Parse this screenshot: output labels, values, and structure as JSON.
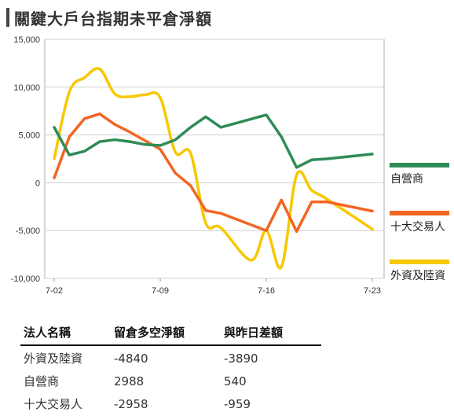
{
  "title": "關鍵大戶台指期未平倉淨額",
  "chart_data": {
    "type": "line",
    "ylim": [
      -10000,
      15000
    ],
    "yticks": [
      15000,
      10000,
      5000,
      0,
      -5000,
      -10000
    ],
    "ytick_labels": [
      "15,000",
      "10,000",
      "5,000",
      "0",
      "-5,000",
      "-10,000"
    ],
    "xtick_labels": [
      "7-02",
      "7-09",
      "7-16",
      "7-23"
    ],
    "xtick_positions": [
      0,
      7,
      14,
      21
    ],
    "x_range": [
      0,
      21
    ],
    "grid": true,
    "legend_position": "right",
    "series": [
      {
        "name": "自營商",
        "color": "#2e8b57",
        "smooth": false,
        "points": [
          [
            0,
            5800
          ],
          [
            1,
            2900
          ],
          [
            2,
            3300
          ],
          [
            3,
            4300
          ],
          [
            4,
            4500
          ],
          [
            5,
            4300
          ],
          [
            6,
            4000
          ],
          [
            7,
            3900
          ],
          [
            8,
            4500
          ],
          [
            9,
            5800
          ],
          [
            10,
            6900
          ],
          [
            11,
            5800
          ],
          [
            14,
            7100
          ],
          [
            15,
            4800
          ],
          [
            16,
            1600
          ],
          [
            17,
            2400
          ],
          [
            18,
            2500
          ],
          [
            21,
            3000
          ]
        ]
      },
      {
        "name": "十大交易人",
        "color": "#f26522",
        "smooth": false,
        "points": [
          [
            0,
            500
          ],
          [
            1,
            4800
          ],
          [
            2,
            6700
          ],
          [
            3,
            7200
          ],
          [
            4,
            6100
          ],
          [
            5,
            5300
          ],
          [
            6,
            4400
          ],
          [
            7,
            3500
          ],
          [
            8,
            1000
          ],
          [
            9,
            -300
          ],
          [
            10,
            -2900
          ],
          [
            11,
            -3200
          ],
          [
            14,
            -5000
          ],
          [
            15,
            -1800
          ],
          [
            16,
            -5100
          ],
          [
            17,
            -2000
          ],
          [
            18,
            -2000
          ],
          [
            21,
            -2958
          ]
        ]
      },
      {
        "name": "外資及陸資",
        "color": "#f7c800",
        "smooth": true,
        "points": [
          [
            0,
            2500
          ],
          [
            1,
            9500
          ],
          [
            2,
            11000
          ],
          [
            3,
            11900
          ],
          [
            4,
            9300
          ],
          [
            5,
            9000
          ],
          [
            6,
            9200
          ],
          [
            7,
            8900
          ],
          [
            8,
            3200
          ],
          [
            9,
            3100
          ],
          [
            10,
            -4200
          ],
          [
            11,
            -4700
          ],
          [
            13,
            -8100
          ],
          [
            14,
            -5000
          ],
          [
            15,
            -8800
          ],
          [
            16,
            800
          ],
          [
            17,
            -800
          ],
          [
            18,
            -1700
          ],
          [
            21,
            -4840
          ]
        ]
      }
    ]
  },
  "table": {
    "headers": [
      "法人名稱",
      "留倉多空淨額",
      "與昨日差額"
    ],
    "rows": [
      [
        "外資及陸資",
        "-4840",
        "-3890"
      ],
      [
        "自營商",
        "2988",
        "540"
      ],
      [
        "十大交易人",
        "-2958",
        "-959"
      ]
    ]
  }
}
